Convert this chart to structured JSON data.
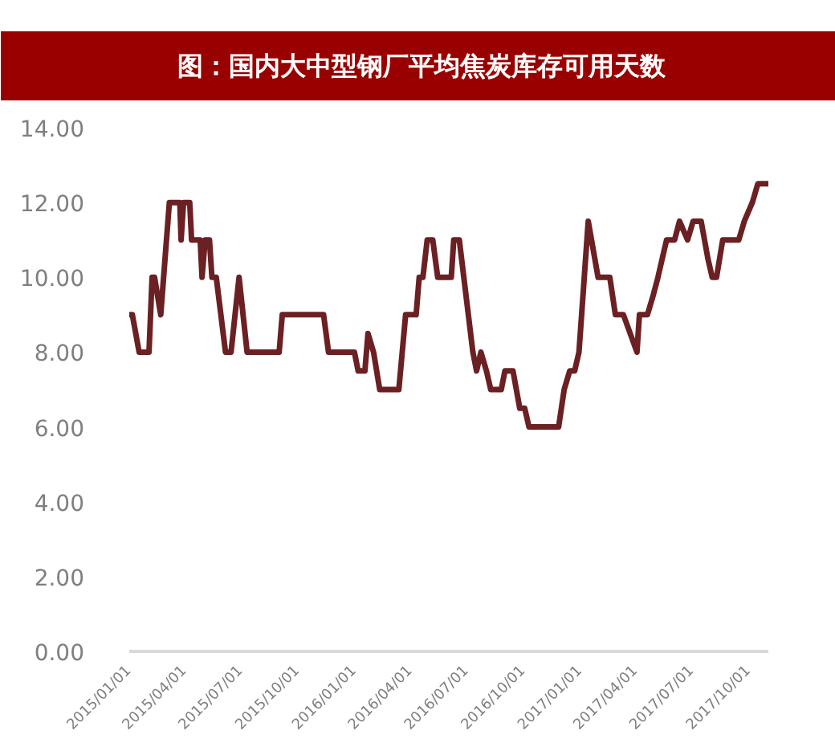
{
  "chart_data": {
    "type": "line",
    "title": "图：国内大中型钢厂平均焦炭库存可用天数",
    "x": [
      "2015-01-01",
      "2015-01-06",
      "2015-01-17",
      "2015-02-02",
      "2015-02-07",
      "2015-02-11",
      "2015-02-21",
      "2015-03-07",
      "2015-03-24",
      "2015-03-26",
      "2015-03-30",
      "2015-04-09",
      "2015-04-12",
      "2015-04-26",
      "2015-04-29",
      "2015-05-04",
      "2015-05-11",
      "2015-05-15",
      "2015-05-22",
      "2015-06-06",
      "2015-06-15",
      "2015-06-28",
      "2015-07-11",
      "2015-09-01",
      "2015-09-06",
      "2015-11-12",
      "2015-11-20",
      "2016-01-01",
      "2016-01-07",
      "2016-01-18",
      "2016-01-23",
      "2016-02-01",
      "2016-02-11",
      "2016-03-13",
      "2016-03-24",
      "2016-04-10",
      "2016-04-15",
      "2016-04-21",
      "2016-04-28",
      "2016-05-07",
      "2016-05-15",
      "2016-06-06",
      "2016-06-10",
      "2016-06-19",
      "2016-07-11",
      "2016-07-17",
      "2016-07-24",
      "2016-08-02",
      "2016-08-09",
      "2016-08-26",
      "2016-09-01",
      "2016-09-14",
      "2016-09-25",
      "2016-10-03",
      "2016-10-10",
      "2016-11-27",
      "2016-12-06",
      "2016-12-15",
      "2016-12-23",
      "2016-12-30",
      "2017-01-14",
      "2017-01-30",
      "2017-02-18",
      "2017-02-27",
      "2017-03-12",
      "2017-03-23",
      "2017-04-03",
      "2017-04-07",
      "2017-04-20",
      "2017-04-29",
      "2017-05-07",
      "2017-05-21",
      "2017-06-03",
      "2017-06-11",
      "2017-06-24",
      "2017-07-03",
      "2017-07-16",
      "2017-07-27",
      "2017-08-03",
      "2017-08-10",
      "2017-08-20",
      "2017-09-15",
      "2017-09-24",
      "2017-10-07",
      "2017-10-16",
      "2017-11-02"
    ],
    "series": [
      {
        "color": "#6b2023",
        "values": [
          9,
          9,
          8,
          8,
          10,
          10,
          9,
          12,
          12,
          11,
          12,
          12,
          11,
          11,
          10,
          11,
          11,
          10,
          10,
          8,
          8,
          10,
          8,
          8,
          9,
          9,
          8,
          8,
          7.5,
          7.5,
          8.5,
          8,
          7,
          7,
          9,
          9,
          10,
          10,
          11,
          11,
          10,
          10,
          11,
          11,
          8,
          7.5,
          8,
          7.5,
          7,
          7,
          7.5,
          7.5,
          6.5,
          6.5,
          6,
          6,
          7,
          7.5,
          7.5,
          8,
          11.5,
          10,
          10,
          9,
          9,
          8.5,
          8,
          9,
          9,
          9.5,
          10,
          11,
          11,
          11.5,
          11,
          11.5,
          11.5,
          10.5,
          10,
          10,
          11,
          11,
          11.5,
          12,
          12.5,
          12.5
        ]
      }
    ],
    "xlim": [
      "2015-01-01",
      "2017-11-02"
    ],
    "xticks": [
      {
        "value": "2015-01-01",
        "label": "2015/01/01"
      },
      {
        "value": "2015-04-01",
        "label": "2015/04/01"
      },
      {
        "value": "2015-07-01",
        "label": "2015/07/01"
      },
      {
        "value": "2015-10-01",
        "label": "2015/10/01"
      },
      {
        "value": "2016-01-01",
        "label": "2016/01/01"
      },
      {
        "value": "2016-04-01",
        "label": "2016/04/01"
      },
      {
        "value": "2016-07-01",
        "label": "2016/07/01"
      },
      {
        "value": "2016-10-01",
        "label": "2016/10/01"
      },
      {
        "value": "2017-01-01",
        "label": "2017/01/01"
      },
      {
        "value": "2017-04-01",
        "label": "2017/04/01"
      },
      {
        "value": "2017-07-01",
        "label": "2017/07/01"
      },
      {
        "value": "2017-10-01",
        "label": "2017/10/01"
      }
    ],
    "ylim": [
      0,
      14
    ],
    "yticks": [
      {
        "value": 0,
        "label": "0.00"
      },
      {
        "value": 2,
        "label": "2.00"
      },
      {
        "value": 4,
        "label": "4.00"
      },
      {
        "value": 6,
        "label": "6.00"
      },
      {
        "value": 8,
        "label": "8.00"
      },
      {
        "value": 10,
        "label": "10.00"
      },
      {
        "value": 12,
        "label": "12.00"
      },
      {
        "value": 14,
        "label": "14.00"
      }
    ],
    "grid": false,
    "marker": "none",
    "line_style": "solid"
  }
}
